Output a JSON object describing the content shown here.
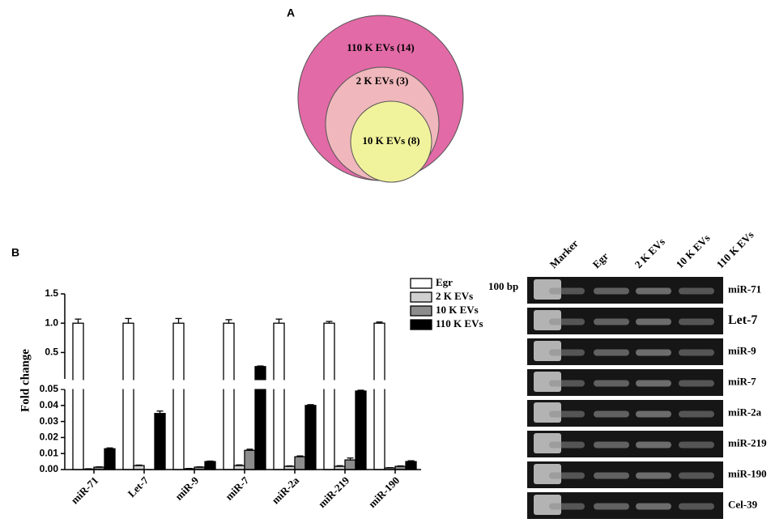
{
  "chart_data": [
    {
      "type": "venn",
      "panel": "A",
      "sets": [
        {
          "label": "110 K EVs (14)",
          "color": "#e26aa6"
        },
        {
          "label": "2 K EVs (3)",
          "color": "#f0b8bc"
        },
        {
          "label": "10 K EVs (8)",
          "color": "#f1f29c"
        }
      ]
    },
    {
      "type": "bar",
      "panel": "B",
      "ylabel": "Fold change",
      "categories": [
        "miR-71",
        "Let-7",
        "miR-9",
        "miR-7",
        "miR-2a",
        "miR-219",
        "miR-190"
      ],
      "series": [
        {
          "name": "Egr",
          "color": "#ffffff",
          "values": [
            1.0,
            1.0,
            1.0,
            1.0,
            1.0,
            1.0,
            1.0
          ],
          "errors": [
            0.07,
            0.08,
            0.08,
            0.06,
            0.07,
            0.03,
            0.02
          ]
        },
        {
          "name": "2 K EVs",
          "color": "#d0d0d0",
          "values": [
            0.0003,
            0.0025,
            0.0005,
            0.0025,
            0.002,
            0.002,
            0.001
          ],
          "errors": [
            0.0002,
            0.0003,
            0.0002,
            0.0004,
            0.0003,
            0.0004,
            0.0002
          ]
        },
        {
          "name": "10 K EVs",
          "color": "#8c8c8c",
          "values": [
            0.0015,
            0,
            0.0015,
            0.012,
            0.008,
            0.006,
            0.002
          ],
          "errors": [
            0.0002,
            0,
            0.0002,
            0.0007,
            0.0005,
            0.0012,
            0.0003
          ]
        },
        {
          "name": "110 K EVs",
          "color": "#000000",
          "values": [
            0.013,
            0.035,
            0.005,
            0.26,
            0.04,
            0.049,
            0.005
          ],
          "errors": [
            0.0005,
            0.0015,
            0.0003,
            0.01,
            0.0005,
            0.0005,
            0.0005
          ]
        }
      ],
      "ylim": [
        0,
        1.5
      ],
      "ybreak": 0.05,
      "yticks": [
        {
          "value": 0,
          "label": "0.00"
        },
        {
          "value": 0.01,
          "label": "0.01"
        },
        {
          "value": 0.02,
          "label": "0.02"
        },
        {
          "value": 0.03,
          "label": "0.03"
        },
        {
          "value": 0.04,
          "label": "0.04"
        },
        {
          "value": 0.05,
          "label": "0.05"
        },
        0.5,
        {
          "value": 1,
          "label": "1.0"
        },
        1.5
      ],
      "legend": "top-right"
    },
    {
      "type": "gel",
      "marker_label": "100 bp",
      "columns": [
        "Marker",
        "Egr",
        "2 K EVs",
        "10 K EVs",
        "110 K EVs"
      ],
      "rows": [
        "miR-71",
        "Let-7",
        "miR-9",
        "miR-7",
        "miR-2a",
        "miR-219",
        "miR-190",
        "Cel-39"
      ]
    }
  ]
}
